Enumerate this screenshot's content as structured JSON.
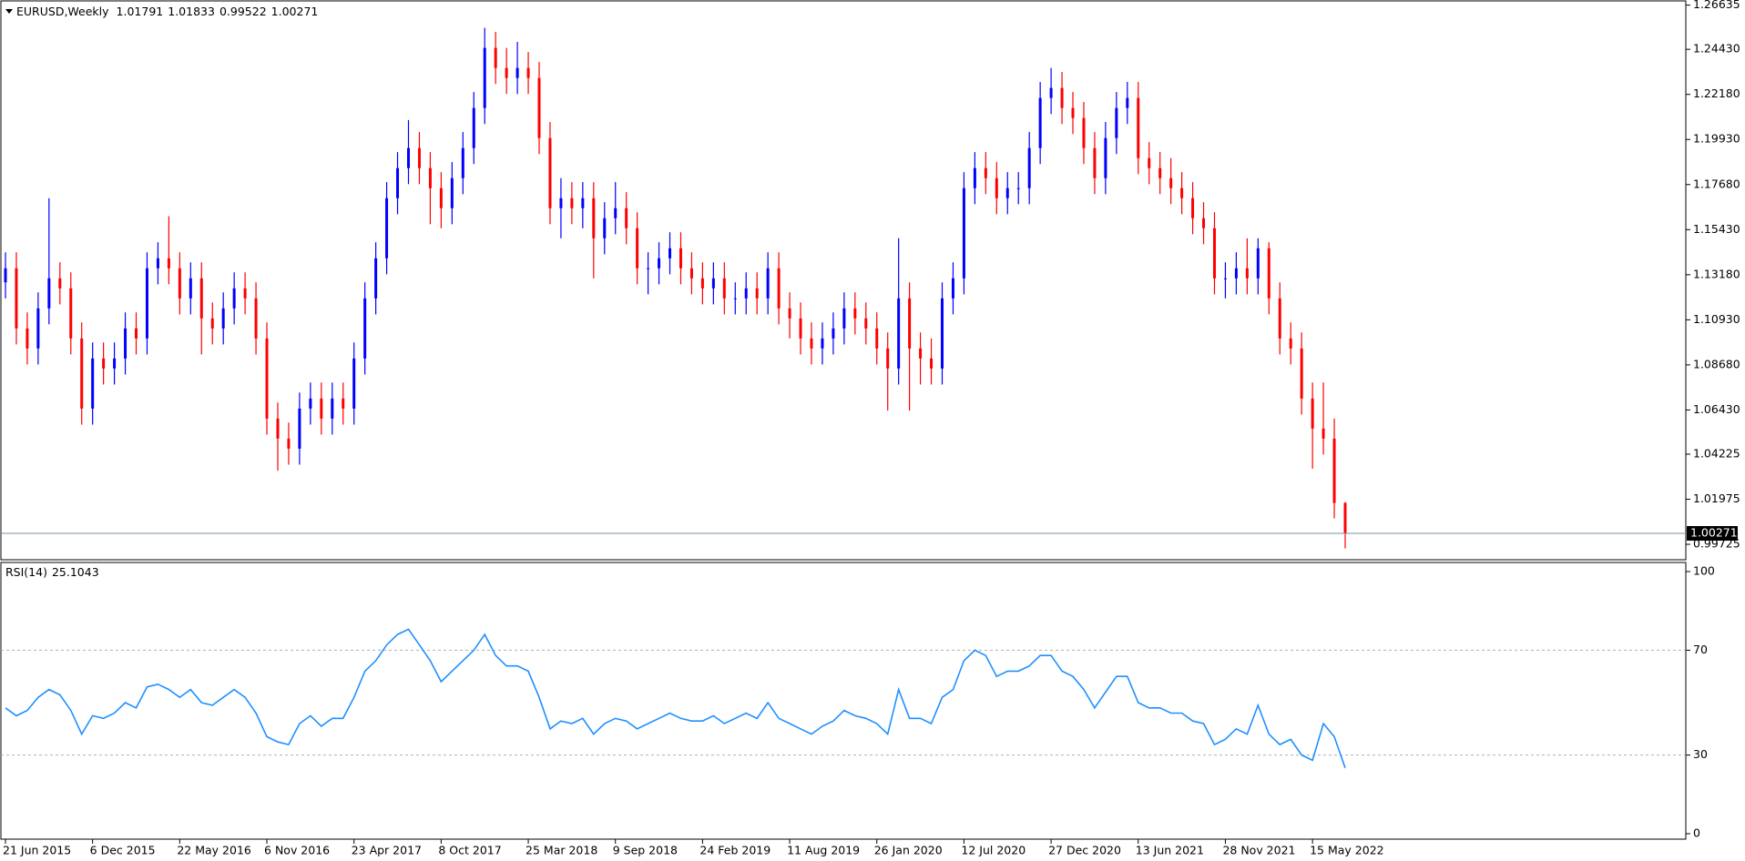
{
  "chart_data": [
    {
      "type": "candlestick",
      "title": "EURUSD,Weekly",
      "categories": [
        "21 Jun 2015",
        null,
        null,
        null,
        null,
        null,
        null,
        null,
        "6 Dec 2015",
        null,
        null,
        null,
        null,
        null,
        null,
        null,
        "22 May 2016",
        null,
        null,
        null,
        null,
        null,
        null,
        null,
        "6 Nov 2016",
        null,
        null,
        null,
        null,
        null,
        null,
        null,
        "23 Apr 2017",
        null,
        null,
        null,
        null,
        null,
        null,
        null,
        "8 Oct 2017",
        null,
        null,
        null,
        null,
        null,
        null,
        null,
        "25 Mar 2018",
        null,
        null,
        null,
        null,
        null,
        null,
        null,
        "9 Sep 2018",
        null,
        null,
        null,
        null,
        null,
        null,
        null,
        "24 Feb 2019",
        null,
        null,
        null,
        null,
        null,
        null,
        null,
        "11 Aug 2019",
        null,
        null,
        null,
        null,
        null,
        null,
        null,
        "26 Jan 2020",
        null,
        null,
        null,
        null,
        null,
        null,
        null,
        "12 Jul 2020",
        null,
        null,
        null,
        null,
        null,
        null,
        null,
        "27 Dec 2020",
        null,
        null,
        null,
        null,
        null,
        null,
        null,
        "13 Jun 2021",
        null,
        null,
        null,
        null,
        null,
        null,
        null,
        "28 Nov 2021",
        null,
        null,
        null,
        null,
        null,
        null,
        null,
        "15 May 2022",
        null,
        null,
        null
      ],
      "open": [
        1.128,
        1.135,
        1.105,
        1.095,
        1.115,
        1.13,
        1.125,
        1.1,
        1.065,
        1.09,
        1.085,
        1.09,
        1.105,
        1.1,
        1.135,
        1.14,
        1.135,
        1.12,
        1.13,
        1.11,
        1.105,
        1.115,
        1.125,
        1.12,
        1.1,
        1.06,
        1.05,
        1.045,
        1.065,
        1.07,
        1.06,
        1.07,
        1.065,
        1.09,
        1.12,
        1.14,
        1.17,
        1.185,
        1.195,
        1.185,
        1.175,
        1.165,
        1.18,
        1.195,
        1.215,
        1.245,
        1.235,
        1.23,
        1.235,
        1.23,
        1.2,
        1.165,
        1.17,
        1.165,
        1.17,
        1.15,
        1.16,
        1.165,
        1.155,
        1.135,
        1.135,
        1.14,
        1.145,
        1.135,
        1.13,
        1.125,
        1.13,
        1.12,
        1.12,
        1.125,
        1.12,
        1.135,
        1.115,
        1.11,
        1.1,
        1.095,
        1.1,
        1.105,
        1.115,
        1.11,
        1.105,
        1.095,
        1.085,
        1.12,
        1.095,
        1.09,
        1.085,
        1.12,
        1.13,
        1.175,
        1.185,
        1.18,
        1.17,
        1.175,
        1.175,
        1.195,
        1.22,
        1.225,
        1.215,
        1.21,
        1.195,
        1.18,
        1.2,
        1.215,
        1.22,
        1.19,
        1.185,
        1.18,
        1.175,
        1.17,
        1.16,
        1.155,
        1.13,
        1.13,
        1.135,
        1.13,
        1.145,
        1.12,
        1.1,
        1.095,
        1.07,
        1.055,
        1.05,
        1.01791
      ],
      "high": [
        1.143,
        1.143,
        1.113,
        1.123,
        1.17,
        1.138,
        1.133,
        1.108,
        1.098,
        1.098,
        1.098,
        1.113,
        1.113,
        1.143,
        1.148,
        1.161,
        1.143,
        1.138,
        1.138,
        1.118,
        1.123,
        1.133,
        1.133,
        1.128,
        1.108,
        1.068,
        1.058,
        1.073,
        1.078,
        1.078,
        1.078,
        1.078,
        1.098,
        1.128,
        1.148,
        1.178,
        1.193,
        1.209,
        1.203,
        1.193,
        1.183,
        1.188,
        1.203,
        1.223,
        1.255,
        1.253,
        1.245,
        1.248,
        1.243,
        1.238,
        1.208,
        1.18,
        1.178,
        1.178,
        1.178,
        1.168,
        1.178,
        1.173,
        1.163,
        1.143,
        1.148,
        1.153,
        1.153,
        1.143,
        1.138,
        1.138,
        1.138,
        1.128,
        1.133,
        1.133,
        1.143,
        1.143,
        1.123,
        1.118,
        1.108,
        1.108,
        1.113,
        1.123,
        1.123,
        1.118,
        1.113,
        1.103,
        1.15,
        1.128,
        1.103,
        1.1,
        1.128,
        1.138,
        1.183,
        1.193,
        1.193,
        1.188,
        1.183,
        1.183,
        1.203,
        1.228,
        1.235,
        1.233,
        1.223,
        1.218,
        1.203,
        1.208,
        1.223,
        1.228,
        1.228,
        1.198,
        1.193,
        1.19,
        1.183,
        1.178,
        1.168,
        1.163,
        1.138,
        1.143,
        1.15,
        1.15,
        1.148,
        1.128,
        1.108,
        1.103,
        1.078,
        1.078,
        1.06,
        1.01833
      ],
      "low": [
        1.12,
        1.097,
        1.087,
        1.087,
        1.107,
        1.117,
        1.092,
        1.057,
        1.057,
        1.077,
        1.077,
        1.082,
        1.092,
        1.092,
        1.127,
        1.127,
        1.112,
        1.112,
        1.092,
        1.097,
        1.097,
        1.107,
        1.112,
        1.092,
        1.052,
        1.034,
        1.037,
        1.037,
        1.057,
        1.052,
        1.052,
        1.057,
        1.057,
        1.082,
        1.112,
        1.132,
        1.162,
        1.177,
        1.177,
        1.157,
        1.155,
        1.157,
        1.172,
        1.187,
        1.207,
        1.227,
        1.222,
        1.222,
        1.222,
        1.192,
        1.157,
        1.15,
        1.157,
        1.155,
        1.13,
        1.142,
        1.152,
        1.147,
        1.127,
        1.122,
        1.127,
        1.132,
        1.127,
        1.122,
        1.117,
        1.117,
        1.112,
        1.112,
        1.112,
        1.112,
        1.112,
        1.107,
        1.1,
        1.092,
        1.087,
        1.087,
        1.092,
        1.097,
        1.102,
        1.097,
        1.087,
        1.064,
        1.077,
        1.064,
        1.077,
        1.077,
        1.077,
        1.112,
        1.122,
        1.167,
        1.172,
        1.162,
        1.162,
        1.167,
        1.167,
        1.187,
        1.212,
        1.207,
        1.202,
        1.187,
        1.172,
        1.172,
        1.192,
        1.207,
        1.182,
        1.177,
        1.172,
        1.167,
        1.162,
        1.152,
        1.147,
        1.122,
        1.12,
        1.122,
        1.122,
        1.122,
        1.112,
        1.092,
        1.087,
        1.062,
        1.035,
        1.042,
        1.0102,
        0.99522
      ],
      "close": [
        1.135,
        1.105,
        1.095,
        1.115,
        1.13,
        1.125,
        1.1,
        1.065,
        1.09,
        1.085,
        1.09,
        1.105,
        1.1,
        1.135,
        1.14,
        1.135,
        1.12,
        1.13,
        1.11,
        1.105,
        1.115,
        1.125,
        1.12,
        1.1,
        1.06,
        1.05,
        1.045,
        1.065,
        1.07,
        1.06,
        1.07,
        1.065,
        1.09,
        1.12,
        1.14,
        1.17,
        1.185,
        1.195,
        1.185,
        1.175,
        1.165,
        1.18,
        1.195,
        1.215,
        1.245,
        1.235,
        1.23,
        1.235,
        1.23,
        1.2,
        1.165,
        1.17,
        1.165,
        1.17,
        1.15,
        1.16,
        1.165,
        1.155,
        1.135,
        1.135,
        1.14,
        1.145,
        1.135,
        1.13,
        1.125,
        1.13,
        1.12,
        1.12,
        1.125,
        1.12,
        1.135,
        1.115,
        1.11,
        1.1,
        1.095,
        1.1,
        1.105,
        1.115,
        1.11,
        1.105,
        1.095,
        1.085,
        1.12,
        1.095,
        1.09,
        1.085,
        1.12,
        1.13,
        1.175,
        1.185,
        1.18,
        1.17,
        1.175,
        1.175,
        1.195,
        1.22,
        1.225,
        1.215,
        1.21,
        1.195,
        1.18,
        1.2,
        1.215,
        1.22,
        1.19,
        1.185,
        1.18,
        1.175,
        1.17,
        1.16,
        1.155,
        1.13,
        1.13,
        1.135,
        1.13,
        1.145,
        1.12,
        1.1,
        1.095,
        1.07,
        1.055,
        1.05,
        1.0179,
        1.00271
      ],
      "up_color": "#0000ff",
      "down_color": "#ff0000",
      "ylim": [
        0.99,
        1.268
      ],
      "yticks": [
        1.26635,
        {
          "value": 1.2443,
          "label": "1.24430"
        },
        {
          "value": 1.2218,
          "label": "1.22180"
        },
        {
          "value": 1.1993,
          "label": "1.19930"
        },
        {
          "value": 1.1768,
          "label": "1.17680"
        },
        {
          "value": 1.1543,
          "label": "1.15430"
        },
        {
          "value": 1.1318,
          "label": "1.13180"
        },
        {
          "value": 1.1093,
          "label": "1.10930"
        },
        {
          "value": 1.0868,
          "label": "1.08680"
        },
        {
          "value": 1.0643,
          "label": "1.06430"
        },
        1.04225,
        1.01975,
        0.99725
      ]
    },
    {
      "type": "line",
      "title": "RSI(14)",
      "color": "#1e90ff",
      "values": [
        48,
        45,
        47,
        52,
        55,
        53,
        47,
        38,
        45,
        44,
        46,
        50,
        48,
        56,
        57,
        55,
        52,
        55,
        50,
        49,
        52,
        55,
        52,
        46,
        37,
        35,
        34,
        42,
        45,
        41,
        44,
        44,
        52,
        62,
        66,
        72,
        76,
        78,
        72,
        66,
        58,
        62,
        66,
        70,
        76,
        68,
        64,
        64,
        62,
        52,
        40,
        43,
        42,
        44,
        38,
        42,
        44,
        43,
        40,
        42,
        44,
        46,
        44,
        43,
        43,
        45,
        42,
        44,
        46,
        44,
        50,
        44,
        42,
        40,
        38,
        41,
        43,
        47,
        45,
        44,
        42,
        38,
        55,
        44,
        44,
        42,
        52,
        55,
        66,
        70,
        68,
        60,
        62,
        62,
        64,
        68,
        68,
        62,
        60,
        55,
        48,
        54,
        60,
        60,
        50,
        48,
        48,
        46,
        46,
        43,
        42,
        34,
        36,
        40,
        38,
        49,
        38,
        34,
        36,
        30,
        28,
        42,
        37,
        25.1043
      ],
      "ylim": [
        0,
        100
      ],
      "yticks": [
        0,
        30,
        70,
        100
      ],
      "levels": [
        30,
        70
      ]
    }
  ]
}
